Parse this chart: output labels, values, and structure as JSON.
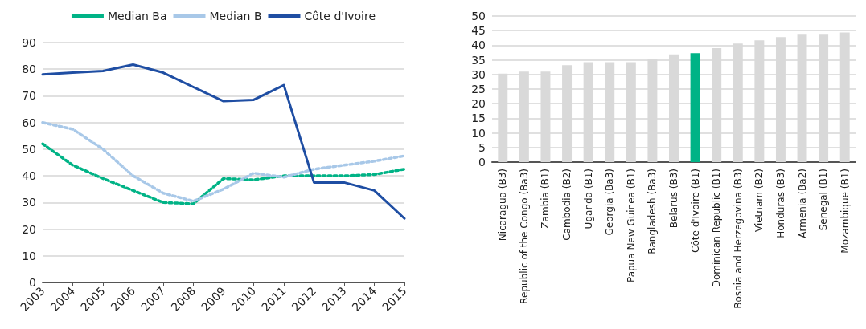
{
  "chart_data": [
    {
      "type": "line",
      "categories": [
        "2003",
        "2004",
        "2005",
        "2006",
        "2007",
        "2008",
        "2009",
        "2010",
        "2011",
        "2012",
        "2013",
        "2014",
        "2015"
      ],
      "series": [
        {
          "name": "Median Ba",
          "color": "#00b386",
          "line_style": "dotted",
          "values": [
            52,
            44,
            39,
            34.5,
            30,
            29.5,
            39,
            38.5,
            40,
            40,
            40,
            40.5,
            42.5
          ]
        },
        {
          "name": "Median B",
          "color": "#a8c8e8",
          "line_style": "dotted",
          "values": [
            60,
            57.5,
            50,
            40,
            33.5,
            30.5,
            35,
            41,
            39.5,
            42.5,
            44,
            45.5,
            47.5
          ]
        },
        {
          "name": "Côte d'Ivoire",
          "color": "#1f4ea3",
          "line_style": "solid",
          "values": [
            78,
            78.7,
            79.3,
            81.7,
            78.7,
            73.3,
            68,
            68.5,
            74,
            37.5,
            37.5,
            34.5,
            24
          ]
        }
      ],
      "ylim": [
        0,
        90
      ],
      "yticks": [
        0,
        10,
        20,
        30,
        40,
        50,
        60,
        70,
        80,
        90
      ],
      "grid": "y",
      "legend": "top",
      "marker": "none"
    },
    {
      "type": "bar",
      "categories": [
        "Nicaragua (B3)",
        "Republic of the Congo (Ba3)",
        "Zambia (B1)",
        "Cambodia (B2)",
        "Uganda (B1)",
        "Georgia (Ba3)",
        "Papua New Guinea (B1)",
        "Bangladesh (Ba3)",
        "Belarus (B3)",
        "Côte d'Ivoire (B1)",
        "Dominican Republic (B1)",
        "Bosnia and Herzegovina (B3)",
        "Vietnam (B2)",
        "Honduras (B3)",
        "Armenia (Ba2)",
        "Senegal (B1)",
        "Mozambique (B1)"
      ],
      "values": [
        30.3,
        31,
        31,
        33.2,
        34.2,
        34.2,
        34.2,
        35.2,
        36.9,
        37.3,
        39,
        40.6,
        41.7,
        42.8,
        43.9,
        43.9,
        44.4
      ],
      "colors": [
        "#d9d9d9",
        "#d9d9d9",
        "#d9d9d9",
        "#d9d9d9",
        "#d9d9d9",
        "#d9d9d9",
        "#d9d9d9",
        "#d9d9d9",
        "#d9d9d9",
        "#00b386",
        "#d9d9d9",
        "#d9d9d9",
        "#d9d9d9",
        "#d9d9d9",
        "#d9d9d9",
        "#d9d9d9",
        "#d9d9d9"
      ],
      "ylim": [
        0,
        50
      ],
      "yticks": [
        0,
        5,
        10,
        15,
        20,
        25,
        30,
        35,
        40,
        45,
        50
      ],
      "grid": "y"
    }
  ]
}
